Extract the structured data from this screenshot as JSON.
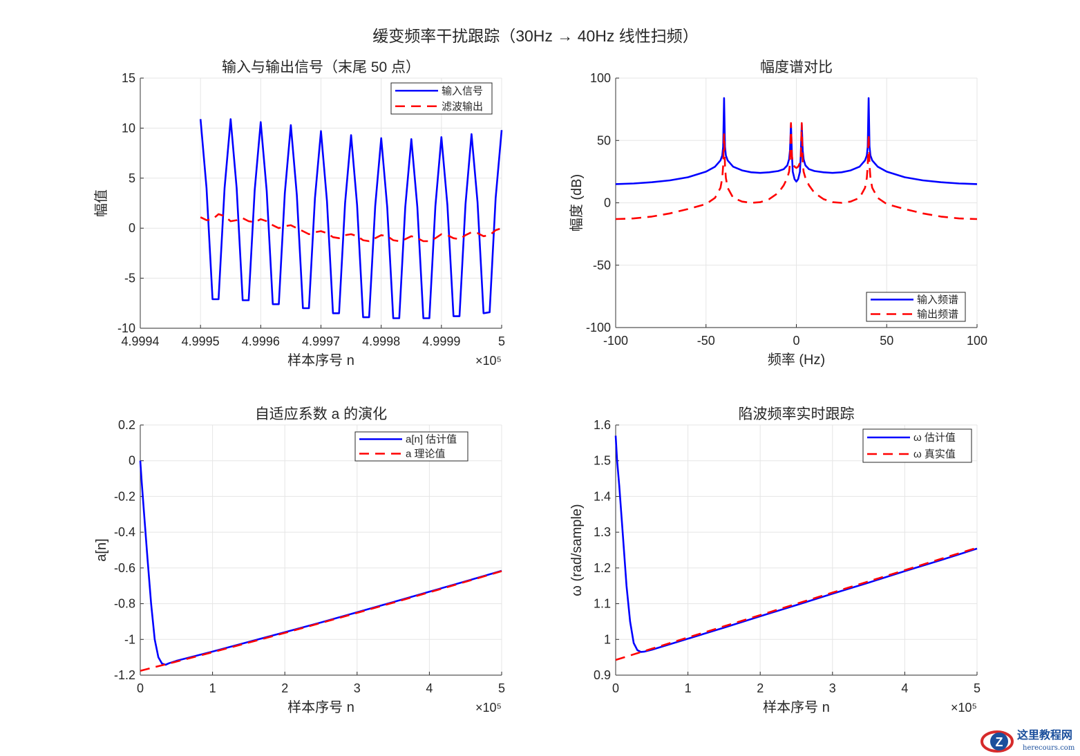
{
  "figure_title": "缓变频率干扰跟踪（30Hz  → 40Hz  线性扫频）",
  "watermark": {
    "name": "这里教程网",
    "url_text": "herecours.com"
  },
  "colors": {
    "blue": "#0000ff",
    "red": "#ff0000",
    "grid": "#e5e5e5",
    "axis": "#262626"
  },
  "chart_data": [
    {
      "type": "line",
      "title": "输入与输出信号（末尾 50 点）",
      "xlabel": "样本序号 n",
      "ylabel": "幅值",
      "exponent_label": "×10⁵",
      "xlim": [
        499940,
        500000
      ],
      "ylim": [
        -10,
        15
      ],
      "grid": true,
      "legend": "top-right",
      "xticks": [
        499940,
        499950,
        499960,
        499970,
        499980,
        499990,
        500000
      ],
      "xtick_labels": [
        "4.9994",
        "4.9995",
        "4.9996",
        "4.9997",
        "4.9998",
        "4.9999",
        "5"
      ],
      "yticks": [
        -10,
        -5,
        0,
        5,
        10,
        15
      ],
      "ytick_labels": [
        "-10",
        "-5",
        "0",
        "5",
        "10",
        "15"
      ],
      "x_start": 499950,
      "x_step": 1,
      "series": [
        {
          "name": "输入信号",
          "color": "#0000ff",
          "style": "solid",
          "y": [
            10.9,
            4.0,
            -7.1,
            -7.1,
            4.0,
            10.9,
            4.0,
            -7.2,
            -7.2,
            3.8,
            10.6,
            3.7,
            -7.6,
            -7.6,
            3.5,
            10.3,
            3.3,
            -8.0,
            -8.0,
            3.0,
            9.7,
            2.7,
            -8.5,
            -8.5,
            2.5,
            9.3,
            2.3,
            -8.9,
            -8.9,
            2.2,
            9.0,
            2.1,
            -9.0,
            -9.0,
            2.1,
            8.9,
            2.1,
            -9.0,
            -9.0,
            2.2,
            9.1,
            2.3,
            -8.8,
            -8.8,
            2.4,
            9.4,
            2.6,
            -8.5,
            -8.4,
            3.0,
            9.8
          ]
        },
        {
          "name": "滤波输出",
          "color": "#ff0000",
          "style": "dashed",
          "y": [
            1.1,
            0.8,
            0.9,
            1.4,
            1.2,
            0.7,
            0.8,
            1.0,
            0.7,
            0.6,
            0.9,
            0.7,
            0.3,
            0.0,
            0.2,
            0.3,
            0.0,
            -0.3,
            -0.6,
            -0.4,
            -0.3,
            -0.5,
            -0.9,
            -1.0,
            -0.7,
            -0.6,
            -0.8,
            -1.2,
            -1.3,
            -1.0,
            -0.7,
            -0.8,
            -1.2,
            -1.3,
            -1.1,
            -0.8,
            -1.0,
            -1.3,
            -1.3,
            -1.0,
            -0.6,
            -0.7,
            -1.0,
            -1.1,
            -0.7,
            -0.4,
            -0.5,
            -0.8,
            -0.7,
            -0.2,
            0.0
          ]
        }
      ]
    },
    {
      "type": "line",
      "title": "幅度谱对比",
      "xlabel": "频率 (Hz)",
      "ylabel": "幅度 (dB)",
      "exponent_label": "",
      "xlim": [
        -100,
        100
      ],
      "ylim": [
        -100,
        100
      ],
      "grid": true,
      "legend": "bottom-right",
      "xticks": [
        -100,
        -50,
        0,
        50,
        100
      ],
      "xtick_labels": [
        "-100",
        "-50",
        "0",
        "50",
        "100"
      ],
      "yticks": [
        -100,
        -50,
        0,
        50,
        100
      ],
      "ytick_labels": [
        "-100",
        "-50",
        "0",
        "50",
        "100"
      ],
      "x": [
        -100,
        -90,
        -80,
        -70,
        -60,
        -50,
        -45,
        -42,
        -41,
        -40.5,
        -40,
        -39.5,
        -39,
        -38,
        -35,
        -30,
        -25,
        -20,
        -15,
        -10,
        -7,
        -5,
        -4,
        -3.5,
        -3,
        -2.5,
        -2,
        -1,
        0,
        1,
        2,
        2.5,
        3,
        3.5,
        4,
        5,
        7,
        10,
        15,
        20,
        25,
        30,
        35,
        38,
        39,
        39.5,
        40,
        40.5,
        41,
        42,
        45,
        50,
        60,
        70,
        80,
        90,
        100
      ],
      "series": [
        {
          "name": "输入频谱",
          "color": "#0000ff",
          "style": "solid",
          "y": [
            15,
            15.5,
            16.5,
            18,
            20.5,
            25,
            29,
            34,
            38,
            45,
            84,
            45,
            38,
            34,
            29,
            26,
            24.5,
            24,
            24.5,
            25.5,
            27,
            30,
            35,
            42,
            63,
            40,
            25,
            19,
            17,
            19,
            25,
            40,
            63,
            42,
            35,
            30,
            27,
            25.5,
            24.5,
            24,
            24.5,
            26,
            29,
            34,
            38,
            45,
            84,
            45,
            38,
            34,
            29,
            25,
            20.5,
            18,
            16.5,
            15.5,
            15
          ]
        },
        {
          "name": "输出频谱",
          "color": "#ff0000",
          "style": "dashed",
          "y": [
            -13,
            -12.5,
            -11,
            -8.5,
            -5,
            -1,
            4,
            12,
            20,
            30,
            55,
            30,
            20,
            12,
            4,
            1,
            0,
            0.5,
            3,
            8,
            14,
            20,
            25,
            32,
            64,
            38,
            32,
            29,
            28,
            29,
            32,
            38,
            64,
            32,
            25,
            20,
            14,
            8,
            3,
            0.5,
            0,
            1,
            4,
            12,
            20,
            30,
            55,
            30,
            20,
            12,
            4,
            -1,
            -5,
            -8.5,
            -11,
            -12.5,
            -13
          ]
        }
      ]
    },
    {
      "type": "line",
      "title": "自适应系数 a 的演化",
      "xlabel": "样本序号 n",
      "ylabel": "a[n]",
      "exponent_label": "×10⁵",
      "xlim": [
        0,
        500000
      ],
      "ylim": [
        -1.2,
        0.2
      ],
      "grid": true,
      "legend": "top-right",
      "xticks": [
        0,
        100000,
        200000,
        300000,
        400000,
        500000
      ],
      "xtick_labels": [
        "0",
        "1",
        "2",
        "3",
        "4",
        "5"
      ],
      "yticks": [
        -1.2,
        -1,
        -0.8,
        -0.6,
        -0.4,
        -0.2,
        0,
        0.2
      ],
      "ytick_labels": [
        "-1.2",
        "-1",
        "-0.8",
        "-0.6",
        "-0.4",
        "-0.2",
        "0",
        "0.2"
      ],
      "series": [
        {
          "name": "a[n] 估计值",
          "color": "#0000ff",
          "style": "solid",
          "x": [
            0,
            2000,
            5000,
            10000,
            15000,
            20000,
            25000,
            30000,
            35000,
            40000,
            50000,
            100000,
            150000,
            200000,
            250000,
            300000,
            350000,
            400000,
            450000,
            500000
          ],
          "y": [
            0,
            -0.12,
            -0.28,
            -0.55,
            -0.8,
            -1.0,
            -1.1,
            -1.135,
            -1.142,
            -1.133,
            -1.12,
            -1.068,
            -1.014,
            -0.96,
            -0.905,
            -0.848,
            -0.791,
            -0.733,
            -0.675,
            -0.616
          ]
        },
        {
          "name": "a 理论值",
          "color": "#ff0000",
          "style": "dashed",
          "x": [
            0,
            50000,
            100000,
            150000,
            200000,
            250000,
            300000,
            350000,
            400000,
            450000,
            500000
          ],
          "y": [
            -1.1756,
            -1.1242,
            -1.0716,
            -1.018,
            -0.9636,
            -0.908,
            -0.8516,
            -0.7942,
            -0.7362,
            -0.6774,
            -0.618
          ]
        }
      ]
    },
    {
      "type": "line",
      "title": "陷波频率实时跟踪",
      "xlabel": "样本序号 n",
      "ylabel": "ω  (rad/sample)",
      "exponent_label": "×10⁵",
      "xlim": [
        0,
        500000
      ],
      "ylim": [
        0.9,
        1.6
      ],
      "grid": true,
      "legend": "top-right",
      "xticks": [
        0,
        100000,
        200000,
        300000,
        400000,
        500000
      ],
      "xtick_labels": [
        "0",
        "1",
        "2",
        "3",
        "4",
        "5"
      ],
      "yticks": [
        0.9,
        1,
        1.1,
        1.2,
        1.3,
        1.4,
        1.5,
        1.6
      ],
      "ytick_labels": [
        "0.9",
        "1",
        "1.1",
        "1.2",
        "1.3",
        "1.4",
        "1.5",
        "1.6"
      ],
      "series": [
        {
          "name": "ω  估计值",
          "color": "#0000ff",
          "style": "solid",
          "x": [
            0,
            2000,
            5000,
            10000,
            15000,
            20000,
            25000,
            30000,
            35000,
            40000,
            50000,
            100000,
            150000,
            200000,
            250000,
            300000,
            350000,
            400000,
            450000,
            500000
          ],
          "y": [
            1.57,
            1.5,
            1.43,
            1.29,
            1.15,
            1.05,
            0.99,
            0.97,
            0.965,
            0.966,
            0.971,
            1.002,
            1.033,
            1.065,
            1.096,
            1.128,
            1.159,
            1.191,
            1.222,
            1.254
          ]
        },
        {
          "name": "ω  真实值",
          "color": "#ff0000",
          "style": "dashed",
          "x": [
            0,
            50000,
            100000,
            150000,
            200000,
            250000,
            300000,
            350000,
            400000,
            450000,
            500000
          ],
          "y": [
            0.9425,
            0.9739,
            1.0053,
            1.0367,
            1.0681,
            1.0996,
            1.131,
            1.1624,
            1.1938,
            1.2252,
            1.2566
          ]
        }
      ]
    }
  ]
}
